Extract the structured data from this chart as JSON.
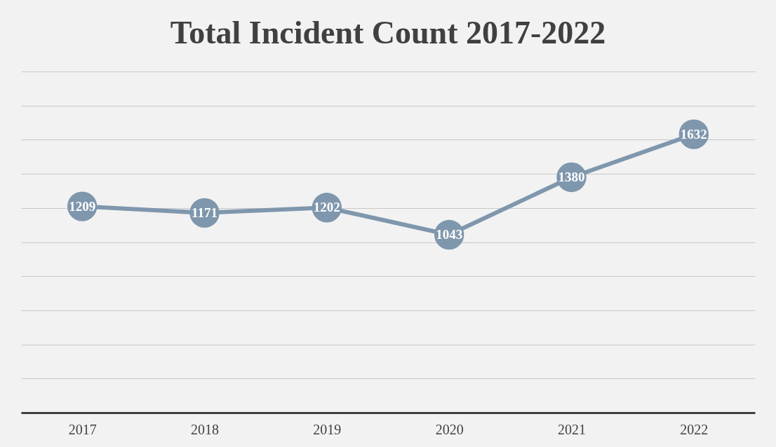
{
  "chart_data": {
    "type": "line",
    "title": "Total Incident Count 2017-2022",
    "categories": [
      "2017",
      "2018",
      "2019",
      "2020",
      "2021",
      "2022"
    ],
    "values": [
      1209,
      1171,
      1202,
      1043,
      1380,
      1632
    ],
    "color": "#7f97ad",
    "marker": "circle",
    "data_labels": true,
    "ylim": [
      0,
      2000
    ],
    "yticks": [
      {
        "value": 0,
        "label": null
      },
      {
        "value": 200,
        "label": null
      },
      {
        "value": 400,
        "label": null
      },
      {
        "value": 600,
        "label": null
      },
      {
        "value": 800,
        "label": null
      },
      {
        "value": 1000,
        "label": null
      },
      {
        "value": 1200,
        "label": null
      },
      {
        "value": 1400,
        "label": null
      },
      {
        "value": 1600,
        "label": null
      },
      {
        "value": 1800,
        "label": null
      },
      {
        "value": 2000,
        "label": null
      }
    ],
    "grid": "y",
    "tick_labels": "x"
  }
}
